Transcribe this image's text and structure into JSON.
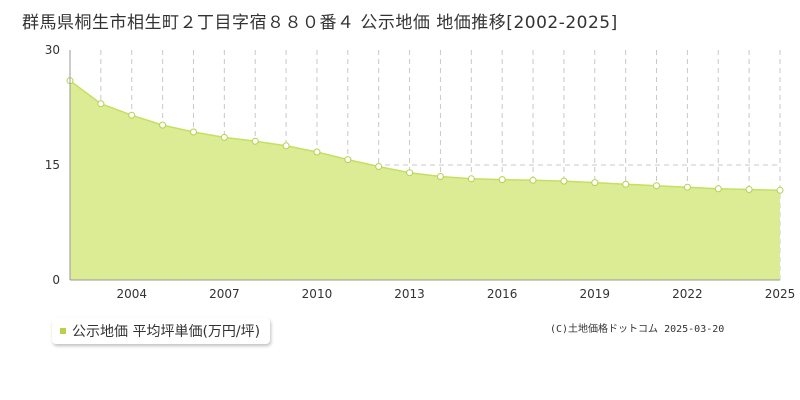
{
  "header": {
    "title": "群馬県桐生市相生町２丁目字宿８８０番４ 公示地価 地価推移[2002-2025]"
  },
  "legend": {
    "label": "公示地価 平均坪単価(万円/坪)"
  },
  "copyright": "(C)土地価格ドットコム 2025-03-20",
  "colors": {
    "fill": "#dbec95",
    "line": "#c5e061",
    "marker_fill": "#ffffff",
    "marker_stroke": "#b5d24a",
    "grid": "#c8c8c8",
    "legend_swatch": "#b5d24a"
  },
  "chart_data": {
    "type": "area",
    "x": [
      2002,
      2003,
      2004,
      2005,
      2006,
      2007,
      2008,
      2009,
      2010,
      2011,
      2012,
      2013,
      2014,
      2015,
      2016,
      2017,
      2018,
      2019,
      2020,
      2021,
      2022,
      2023,
      2024,
      2025
    ],
    "series": [
      {
        "name": "公示地価 平均坪単価(万円/坪)",
        "values": [
          26.0,
          23.0,
          21.5,
          20.2,
          19.3,
          18.6,
          18.1,
          17.5,
          16.7,
          15.7,
          14.8,
          14.0,
          13.5,
          13.2,
          13.1,
          13.0,
          12.9,
          12.7,
          12.5,
          12.3,
          12.1,
          11.9,
          11.8,
          11.7
        ]
      }
    ],
    "xticks": [
      "2004",
      "2007",
      "2010",
      "2013",
      "2016",
      "2019",
      "2022",
      "2025"
    ],
    "yticks": [
      "0",
      "15",
      "30"
    ],
    "ylim": [
      0,
      30
    ],
    "xlim": [
      2002,
      2025
    ],
    "grid": true
  }
}
